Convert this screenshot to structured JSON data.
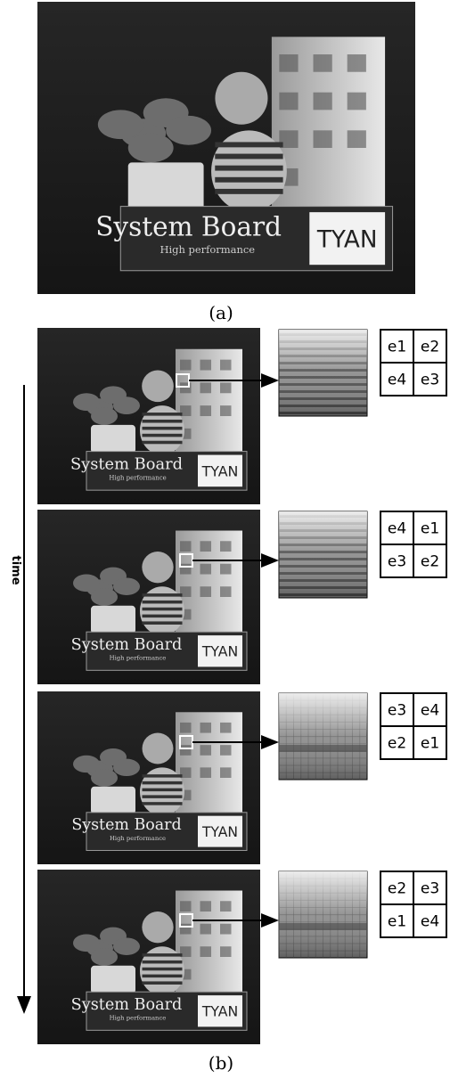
{
  "figure": {
    "panel_a": {
      "caption": "(a)"
    },
    "panel_b": {
      "caption": "(b)",
      "time_label": "time",
      "frames": [
        {
          "grid": [
            [
              "e1",
              "e2"
            ],
            [
              "e4",
              "e3"
            ]
          ]
        },
        {
          "grid": [
            [
              "e4",
              "e1"
            ],
            [
              "e3",
              "e2"
            ]
          ]
        },
        {
          "grid": [
            [
              "e3",
              "e4"
            ],
            [
              "e2",
              "e1"
            ]
          ]
        },
        {
          "grid": [
            [
              "e2",
              "e3"
            ],
            [
              "e1",
              "e4"
            ]
          ]
        }
      ]
    }
  },
  "photo_text": {
    "brand": "System Board",
    "tagline": "High performance",
    "logo": "TYAN"
  }
}
